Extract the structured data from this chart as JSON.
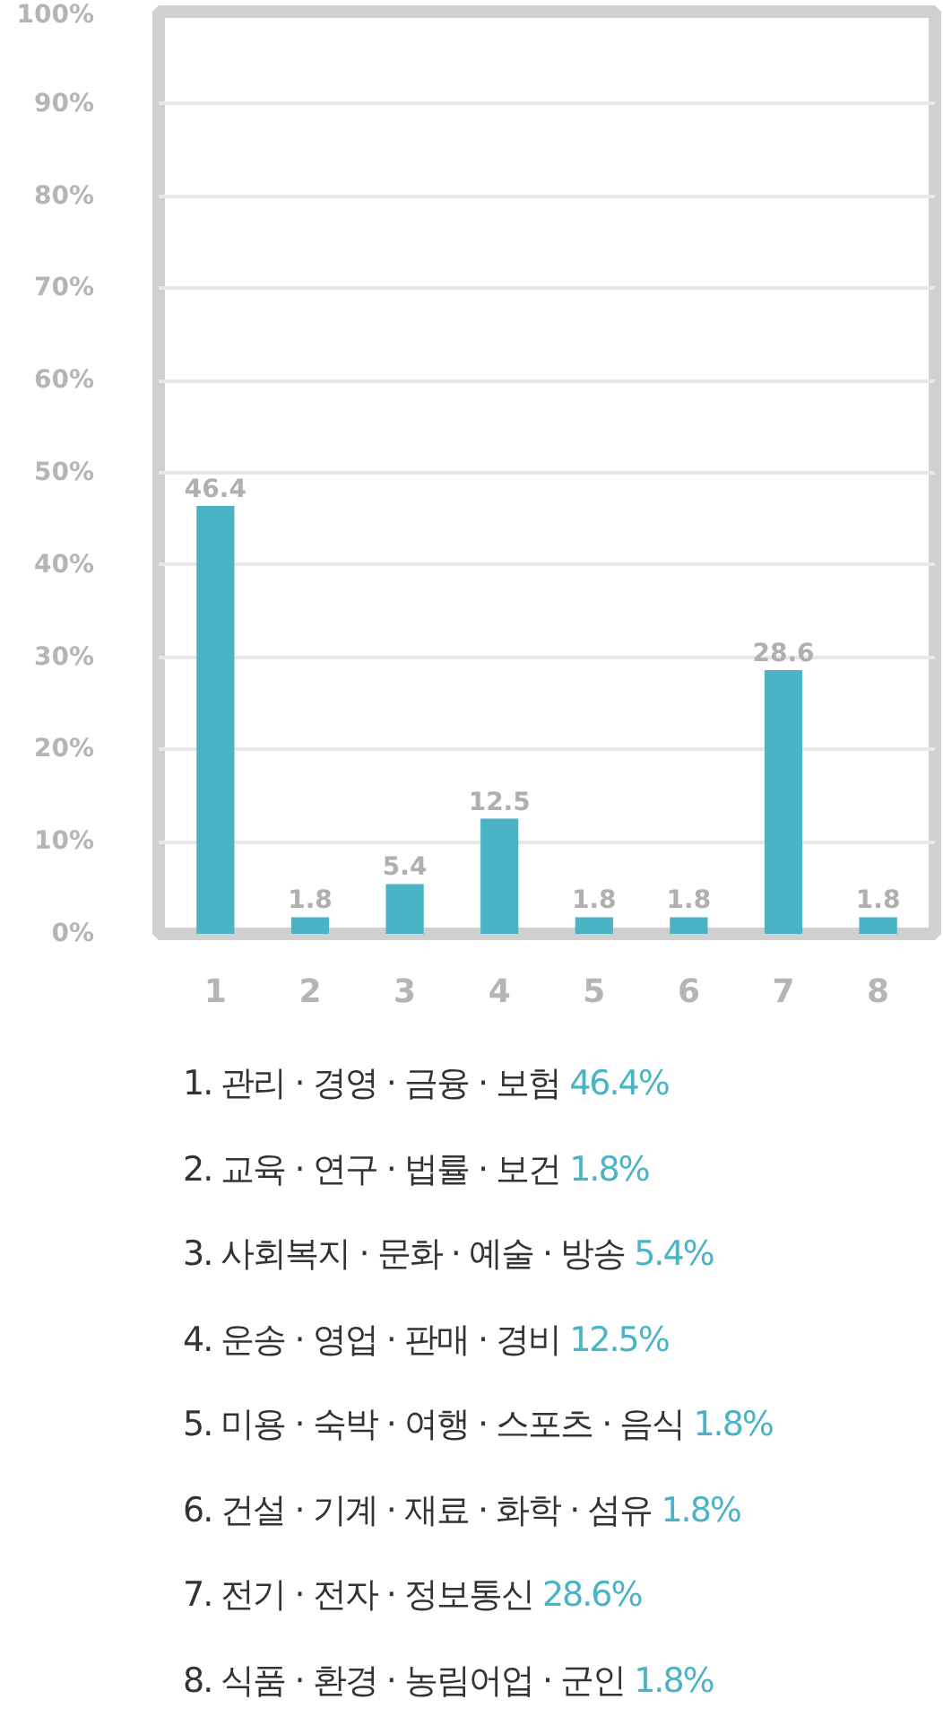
{
  "chart_data": {
    "type": "bar",
    "categories": [
      "1",
      "2",
      "3",
      "4",
      "5",
      "6",
      "7",
      "8"
    ],
    "values": [
      46.4,
      1.8,
      5.4,
      12.5,
      1.8,
      1.8,
      28.6,
      1.8
    ],
    "color": "#4ab3c6",
    "data_labels": true,
    "ylim": [
      0,
      100
    ],
    "yticks": [
      {
        "value": 0,
        "label": "0%"
      },
      {
        "value": 10,
        "label": "10%"
      },
      {
        "value": 20,
        "label": "20%"
      },
      {
        "value": 30,
        "label": "30%"
      },
      {
        "value": 40,
        "label": "40%"
      },
      {
        "value": 50,
        "label": "50%"
      },
      {
        "value": 60,
        "label": "60%"
      },
      {
        "value": 70,
        "label": "70%"
      },
      {
        "value": 80,
        "label": "80%"
      },
      {
        "value": 90,
        "label": "90%"
      },
      {
        "value": 100,
        "label": "100%"
      }
    ],
    "grid": "y",
    "annotations": [
      "1. 관리 · 경영 · 금융 · 보험 46.4%",
      "2. 교육 · 연구 · 법률 · 보건 1.8%",
      "3. 사회복지 · 문화 · 예술 · 방송 5.4%",
      "4. 운송 · 영업 · 판매 · 경비 12.5%",
      "5. 미용 · 숙박 · 여행 · 스포츠 · 음식 1.8%",
      "6. 건설 · 기계 · 재료 · 화학 · 섬유 1.8%",
      "7. 전기 · 전자 · 정보통신 28.6%",
      "8. 식품 · 환경 · 농림어업 · 군인 1.8%"
    ]
  }
}
